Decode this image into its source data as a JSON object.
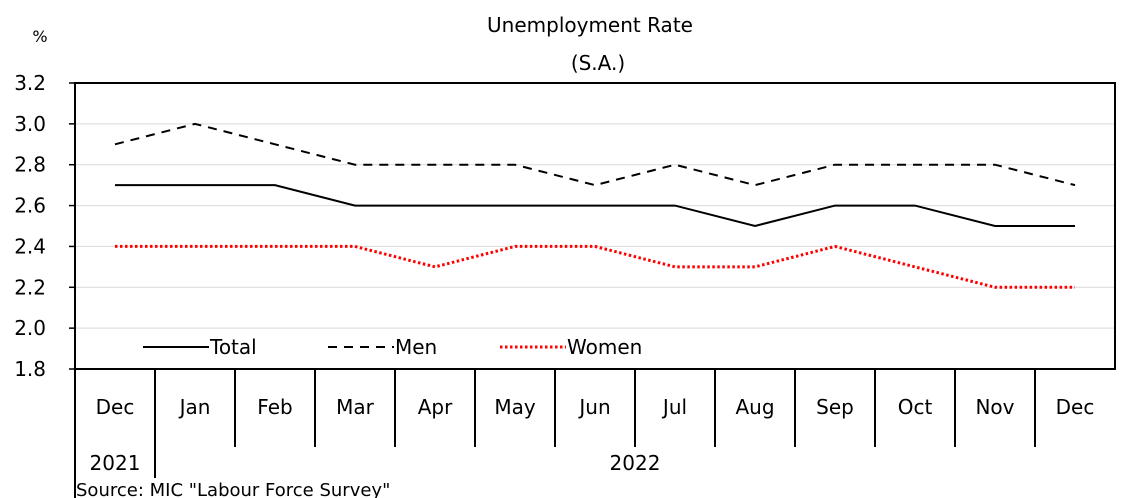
{
  "chart_data": {
    "type": "line",
    "title": "Unemployment Rate",
    "subtitle": "(S.A.)",
    "ylabel": "%",
    "ylim": [
      1.8,
      3.2
    ],
    "yticks": [
      "1.8",
      "2.0",
      "2.2",
      "2.4",
      "2.6",
      "2.8",
      "3.0",
      "3.2"
    ],
    "categories": [
      "Dec",
      "Jan",
      "Feb",
      "Mar",
      "Apr",
      "May",
      "Jun",
      "Jul",
      "Aug",
      "Sep",
      "Oct",
      "Nov",
      "Dec"
    ],
    "year_labels": [
      {
        "label": "2021",
        "from": 0,
        "to": 0
      },
      {
        "label": "2022",
        "from": 1,
        "to": 12
      }
    ],
    "series": [
      {
        "name": "Total",
        "style": "solid",
        "color": "#000000",
        "values": [
          2.7,
          2.7,
          2.7,
          2.6,
          2.6,
          2.6,
          2.6,
          2.6,
          2.5,
          2.6,
          2.6,
          2.5,
          2.5
        ]
      },
      {
        "name": "Men",
        "style": "dashed",
        "color": "#000000",
        "values": [
          2.9,
          3.0,
          2.9,
          2.8,
          2.8,
          2.8,
          2.7,
          2.8,
          2.7,
          2.8,
          2.8,
          2.8,
          2.7
        ]
      },
      {
        "name": "Women",
        "style": "dotted",
        "color": "#ff0000",
        "values": [
          2.4,
          2.4,
          2.4,
          2.4,
          2.3,
          2.4,
          2.4,
          2.3,
          2.3,
          2.4,
          2.3,
          2.2,
          2.2
        ]
      }
    ],
    "legend_position": "bottom-left",
    "grid": true
  },
  "source": "Source: MIC \"Labour Force Survey\""
}
